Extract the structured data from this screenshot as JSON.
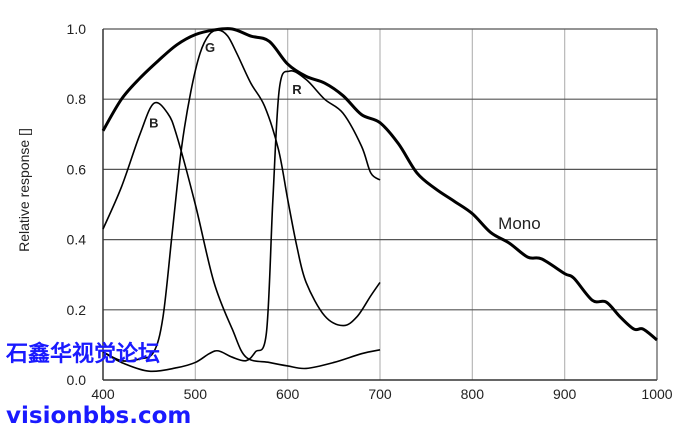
{
  "chart_data": {
    "type": "line",
    "title": "",
    "xlabel": "",
    "ylabel": "Relative response []",
    "xlim": [
      400,
      1000
    ],
    "ylim": [
      0,
      1.0
    ],
    "xticks": [
      "400",
      "500",
      "600",
      "700",
      "800",
      "900",
      "1000"
    ],
    "yticks": [
      "0.0",
      "0.2",
      "0.4",
      "0.6",
      "0.8",
      "1.0"
    ],
    "grid": true,
    "series": [
      {
        "name": "Mono",
        "label_at": [
          851,
          0.43
        ],
        "color": "#000000",
        "bold": true,
        "x": [
          400,
          420,
          440,
          460,
          480,
          500,
          520,
          540,
          560,
          580,
          600,
          620,
          640,
          660,
          680,
          700,
          720,
          740,
          760,
          780,
          800,
          820,
          840,
          860,
          875,
          900,
          910,
          930,
          945,
          960,
          975,
          985,
          1000
        ],
        "y": [
          0.71,
          0.8,
          0.86,
          0.91,
          0.955,
          0.984,
          0.997,
          1.0,
          0.98,
          0.965,
          0.9,
          0.865,
          0.846,
          0.81,
          0.756,
          0.733,
          0.673,
          0.59,
          0.545,
          0.51,
          0.474,
          0.42,
          0.39,
          0.35,
          0.345,
          0.303,
          0.29,
          0.227,
          0.222,
          0.18,
          0.145,
          0.145,
          0.114
        ]
      },
      {
        "name": "B",
        "label_at": [
          455,
          0.72
        ],
        "color": "#000000",
        "bold": false,
        "x": [
          400,
          420,
          440,
          455,
          470,
          480,
          500,
          520,
          540,
          555,
          580,
          600,
          620,
          650,
          680,
          700
        ],
        "y": [
          0.43,
          0.55,
          0.7,
          0.788,
          0.76,
          0.695,
          0.5,
          0.28,
          0.145,
          0.065,
          0.05,
          0.04,
          0.033,
          0.05,
          0.075,
          0.086
        ]
      },
      {
        "name": "G",
        "label_at": [
          516,
          0.935
        ],
        "color": "#000000",
        "bold": false,
        "x": [
          400,
          420,
          440,
          455,
          465,
          475,
          485,
          495,
          505,
          515,
          525,
          535,
          545,
          560,
          575,
          590,
          600,
          610,
          620,
          640,
          660,
          675,
          690,
          700
        ],
        "y": [
          0.08,
          0.055,
          0.06,
          0.08,
          0.18,
          0.42,
          0.66,
          0.82,
          0.93,
          0.984,
          0.997,
          0.98,
          0.93,
          0.846,
          0.78,
          0.657,
          0.515,
          0.38,
          0.278,
          0.183,
          0.155,
          0.18,
          0.24,
          0.278
        ]
      },
      {
        "name": "R",
        "label_at": [
          610,
          0.815
        ],
        "color": "#000000",
        "bold": false,
        "x": [
          400,
          420,
          450,
          480,
          500,
          515,
          525,
          540,
          555,
          565,
          577,
          584,
          591,
          602,
          620,
          640,
          660,
          680,
          690,
          700
        ],
        "y": [
          0.08,
          0.05,
          0.025,
          0.035,
          0.05,
          0.075,
          0.083,
          0.065,
          0.055,
          0.08,
          0.135,
          0.515,
          0.83,
          0.88,
          0.856,
          0.8,
          0.76,
          0.666,
          0.59,
          0.57
        ]
      }
    ]
  },
  "watermark": {
    "line1": "石鑫华视觉论坛",
    "line2": "visionbbs.com",
    "color": "#1a1aff"
  }
}
